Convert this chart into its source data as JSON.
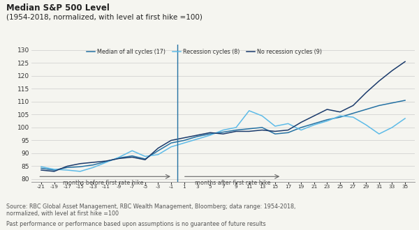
{
  "title_line1": "Median S&P 500 Level",
  "title_line2": "(1954-2018, normalized, with level at first hike =100)",
  "source_text": "Source: RBC Global Asset Management, RBC Wealth Management, Bloomberg; data range: 1954-2018,\nnormalized, with level at first hike =100",
  "disclaimer": "Past performance or performance based upon assumptions is no guarantee of future results",
  "legend_labels": [
    "Median of all cycles (17)",
    "Recession cycles (8)",
    "No recession cycles (9)"
  ],
  "line_colors": [
    "#2471a3",
    "#5dbbe8",
    "#1a3a6b"
  ],
  "ylabel_ticks": [
    80,
    85,
    90,
    95,
    100,
    105,
    110,
    115,
    120,
    125,
    130
  ],
  "ylim": [
    79,
    132
  ],
  "vline_x": 0,
  "arrow_before_text": "months before first rate hike",
  "arrow_after_text": "months after first rate hike",
  "x_ticks": [
    -21,
    -19,
    -17,
    -15,
    -13,
    -11,
    -9,
    -7,
    -5,
    -3,
    -1,
    1,
    3,
    5,
    7,
    9,
    11,
    13,
    15,
    17,
    19,
    21,
    23,
    25,
    27,
    29,
    31,
    33,
    35
  ],
  "all_cycles": [
    84.2,
    83.5,
    84.5,
    84.8,
    85.5,
    86.8,
    88.2,
    89.0,
    87.8,
    91.0,
    94.0,
    95.0,
    96.5,
    97.5,
    98.2,
    99.0,
    99.5,
    100.0,
    97.5,
    98.0,
    100.0,
    101.5,
    103.0,
    104.0,
    105.5,
    107.0,
    108.5,
    109.5,
    110.5
  ],
  "recession_cycles": [
    84.8,
    83.8,
    83.5,
    83.0,
    84.5,
    86.5,
    88.5,
    91.0,
    88.8,
    89.5,
    92.5,
    94.0,
    95.5,
    97.0,
    99.0,
    100.0,
    106.5,
    104.5,
    100.5,
    101.5,
    99.0,
    101.0,
    102.5,
    104.5,
    104.0,
    101.0,
    97.5,
    100.0,
    103.5
  ],
  "no_recession_cycles": [
    83.5,
    83.0,
    85.0,
    86.0,
    86.5,
    87.0,
    88.0,
    88.5,
    87.5,
    92.0,
    95.0,
    96.0,
    97.0,
    98.0,
    97.5,
    98.5,
    98.5,
    99.0,
    98.5,
    99.0,
    102.0,
    104.5,
    107.0,
    106.0,
    108.5,
    113.5,
    118.0,
    122.0,
    125.5
  ],
  "bg_color": "#f5f5f0",
  "plot_bg": "#f5f5f0"
}
